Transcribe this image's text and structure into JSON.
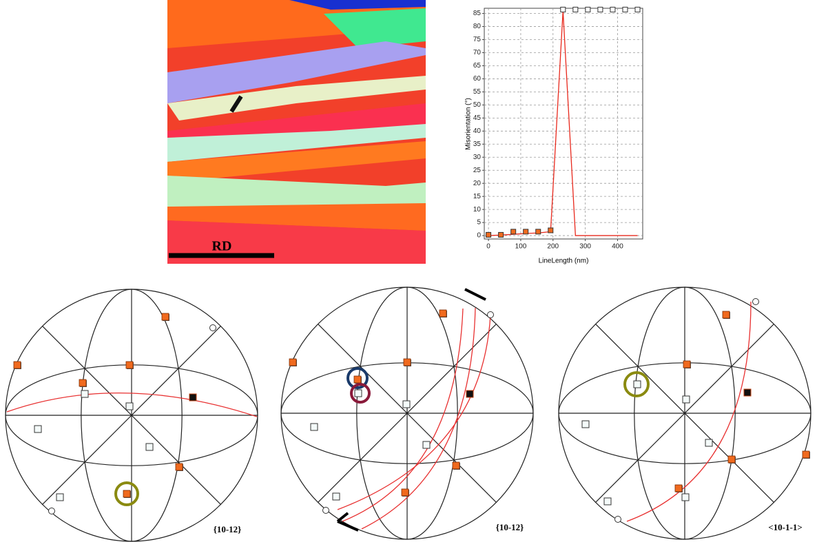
{
  "chart_data": {
    "type": "line",
    "ylabel": "Misorientation (°)",
    "xlabel": "LineLength (nm)",
    "x": [
      0,
      38.5,
      77,
      115.5,
      154,
      192.5,
      231,
      269.5,
      308,
      346.5,
      385,
      423.5,
      462
    ],
    "series": [
      {
        "color": "#e8281c",
        "marker": "none",
        "values": [
          0,
          0.2,
          0.5,
          0.8,
          1,
          1.5,
          86,
          0,
          0,
          0,
          0,
          0,
          0
        ]
      },
      {
        "color": "#f06a1e",
        "marker": "square",
        "values": [
          0.3,
          0.3,
          1.5,
          1.5,
          1.5,
          2,
          null,
          null,
          null,
          null,
          null,
          null,
          null
        ]
      },
      {
        "color": "#ffffff",
        "marker": "square",
        "values": [
          null,
          null,
          null,
          null,
          null,
          null,
          86.5,
          86.5,
          86.5,
          86.5,
          86.5,
          86.5,
          86.5
        ]
      }
    ],
    "xlim": [
      -13,
      478
    ],
    "ylim": [
      -1.3,
      87
    ],
    "xticks": [
      0,
      100,
      200,
      300,
      400
    ],
    "yticks": [
      0,
      5,
      10,
      15,
      20,
      25,
      30,
      35,
      40,
      45,
      50,
      55,
      60,
      65,
      70,
      75,
      80,
      85
    ],
    "grid": true
  },
  "ebsd_map": {
    "scale_label": "RD"
  },
  "pole_figures": [
    {
      "label": "{10-12}"
    },
    {
      "label": "{10-12}"
    },
    {
      "label": "<10-1-1>"
    }
  ]
}
